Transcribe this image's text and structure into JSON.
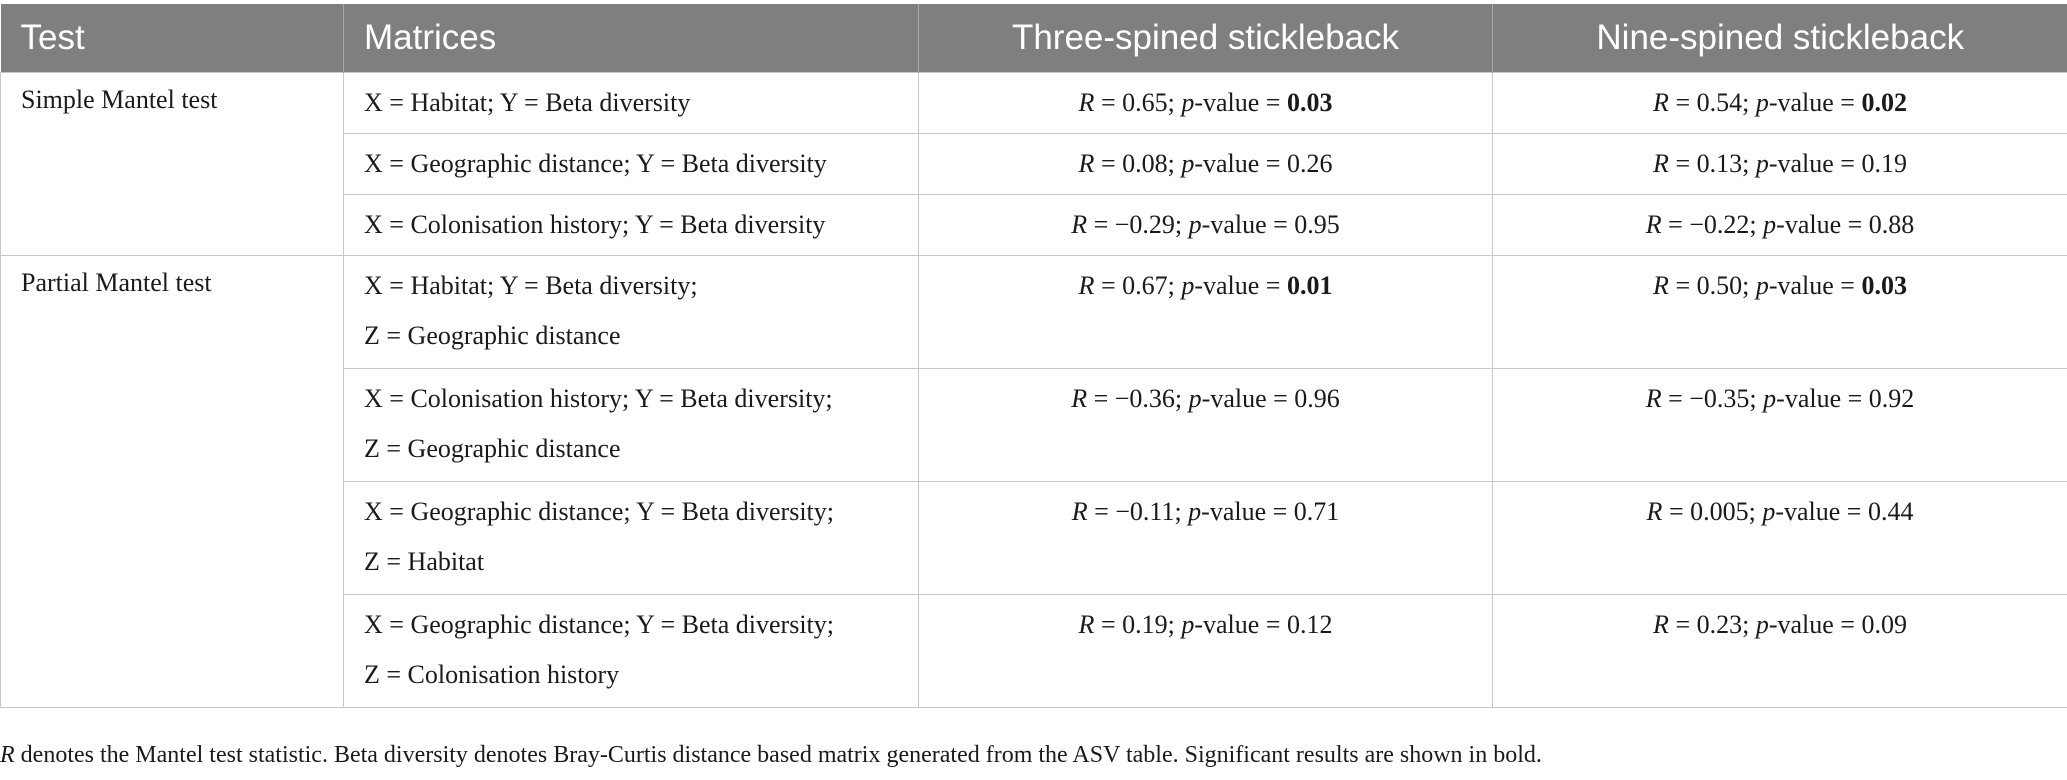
{
  "table": {
    "headers": [
      "Test",
      "Matrices",
      "Three-spined stickleback",
      "Nine-spined stickleback"
    ],
    "groups": [
      {
        "test": "Simple Mantel test",
        "rows": [
          {
            "matrices": [
              "X = Habitat; Y = Beta diversity"
            ],
            "three": {
              "R_label": "R",
              "R_eq": " = 0.65; ",
              "p_label": "p",
              "p_eq": "-value = ",
              "p_value": "0.03",
              "significant": true
            },
            "nine": {
              "R_label": "R",
              "R_eq": " = 0.54; ",
              "p_label": "p",
              "p_eq": "-value = ",
              "p_value": "0.02",
              "significant": true
            }
          },
          {
            "matrices": [
              "X = Geographic distance; Y = Beta diversity"
            ],
            "three": {
              "R_label": "R",
              "R_eq": " = 0.08; ",
              "p_label": "p",
              "p_eq": "-value = ",
              "p_value": "0.26",
              "significant": false
            },
            "nine": {
              "R_label": "R",
              "R_eq": " = 0.13; ",
              "p_label": "p",
              "p_eq": "-value = ",
              "p_value": "0.19",
              "significant": false
            }
          },
          {
            "matrices": [
              "X = Colonisation history; Y = Beta diversity"
            ],
            "three": {
              "R_label": "R",
              "R_eq": " = −0.29; ",
              "p_label": "p",
              "p_eq": "-value = ",
              "p_value": "0.95",
              "significant": false
            },
            "nine": {
              "R_label": "R",
              "R_eq": " = −0.22; ",
              "p_label": "p",
              "p_eq": "-value = ",
              "p_value": "0.88",
              "significant": false
            }
          }
        ]
      },
      {
        "test": "Partial Mantel test",
        "rows": [
          {
            "matrices": [
              "X = Habitat; Y = Beta diversity;",
              "Z = Geographic distance"
            ],
            "three": {
              "R_label": "R",
              "R_eq": " = 0.67; ",
              "p_label": "p",
              "p_eq": "-value = ",
              "p_value": "0.01",
              "significant": true
            },
            "nine": {
              "R_label": "R",
              "R_eq": " = 0.50; ",
              "p_label": "p",
              "p_eq": "-value = ",
              "p_value": "0.03",
              "significant": true
            }
          },
          {
            "matrices": [
              "X = Colonisation history; Y = Beta diversity;",
              "Z = Geographic distance"
            ],
            "three": {
              "R_label": "R",
              "R_eq": " = −0.36; ",
              "p_label": "p",
              "p_eq": "-value = ",
              "p_value": "0.96",
              "significant": false
            },
            "nine": {
              "R_label": "R",
              "R_eq": " = −0.35; ",
              "p_label": "p",
              "p_eq": "-value = ",
              "p_value": "0.92",
              "significant": false
            }
          },
          {
            "matrices": [
              "X = Geographic distance; Y = Beta diversity;",
              "Z = Habitat"
            ],
            "three": {
              "R_label": "R",
              "R_eq": " = −0.11; ",
              "p_label": "p",
              "p_eq": "-value = ",
              "p_value": "0.71",
              "significant": false
            },
            "nine": {
              "R_label": "R",
              "R_eq": " = 0.005; ",
              "p_label": "p",
              "p_eq": "-value = ",
              "p_value": "0.44",
              "significant": false
            }
          },
          {
            "matrices": [
              "X = Geographic distance; Y = Beta diversity;",
              "Z = Colonisation history"
            ],
            "three": {
              "R_label": "R",
              "R_eq": " = 0.19; ",
              "p_label": "p",
              "p_eq": "-value = ",
              "p_value": "0.12",
              "significant": false
            },
            "nine": {
              "R_label": "R",
              "R_eq": " = 0.23; ",
              "p_label": "p",
              "p_eq": "-value = ",
              "p_value": "0.09",
              "significant": false
            }
          }
        ]
      }
    ]
  },
  "footnote": {
    "R_label": "R",
    "text": " denotes the Mantel test statistic. Beta diversity denotes Bray-Curtis distance based matrix generated from the ASV table. Significant results are shown in bold."
  }
}
